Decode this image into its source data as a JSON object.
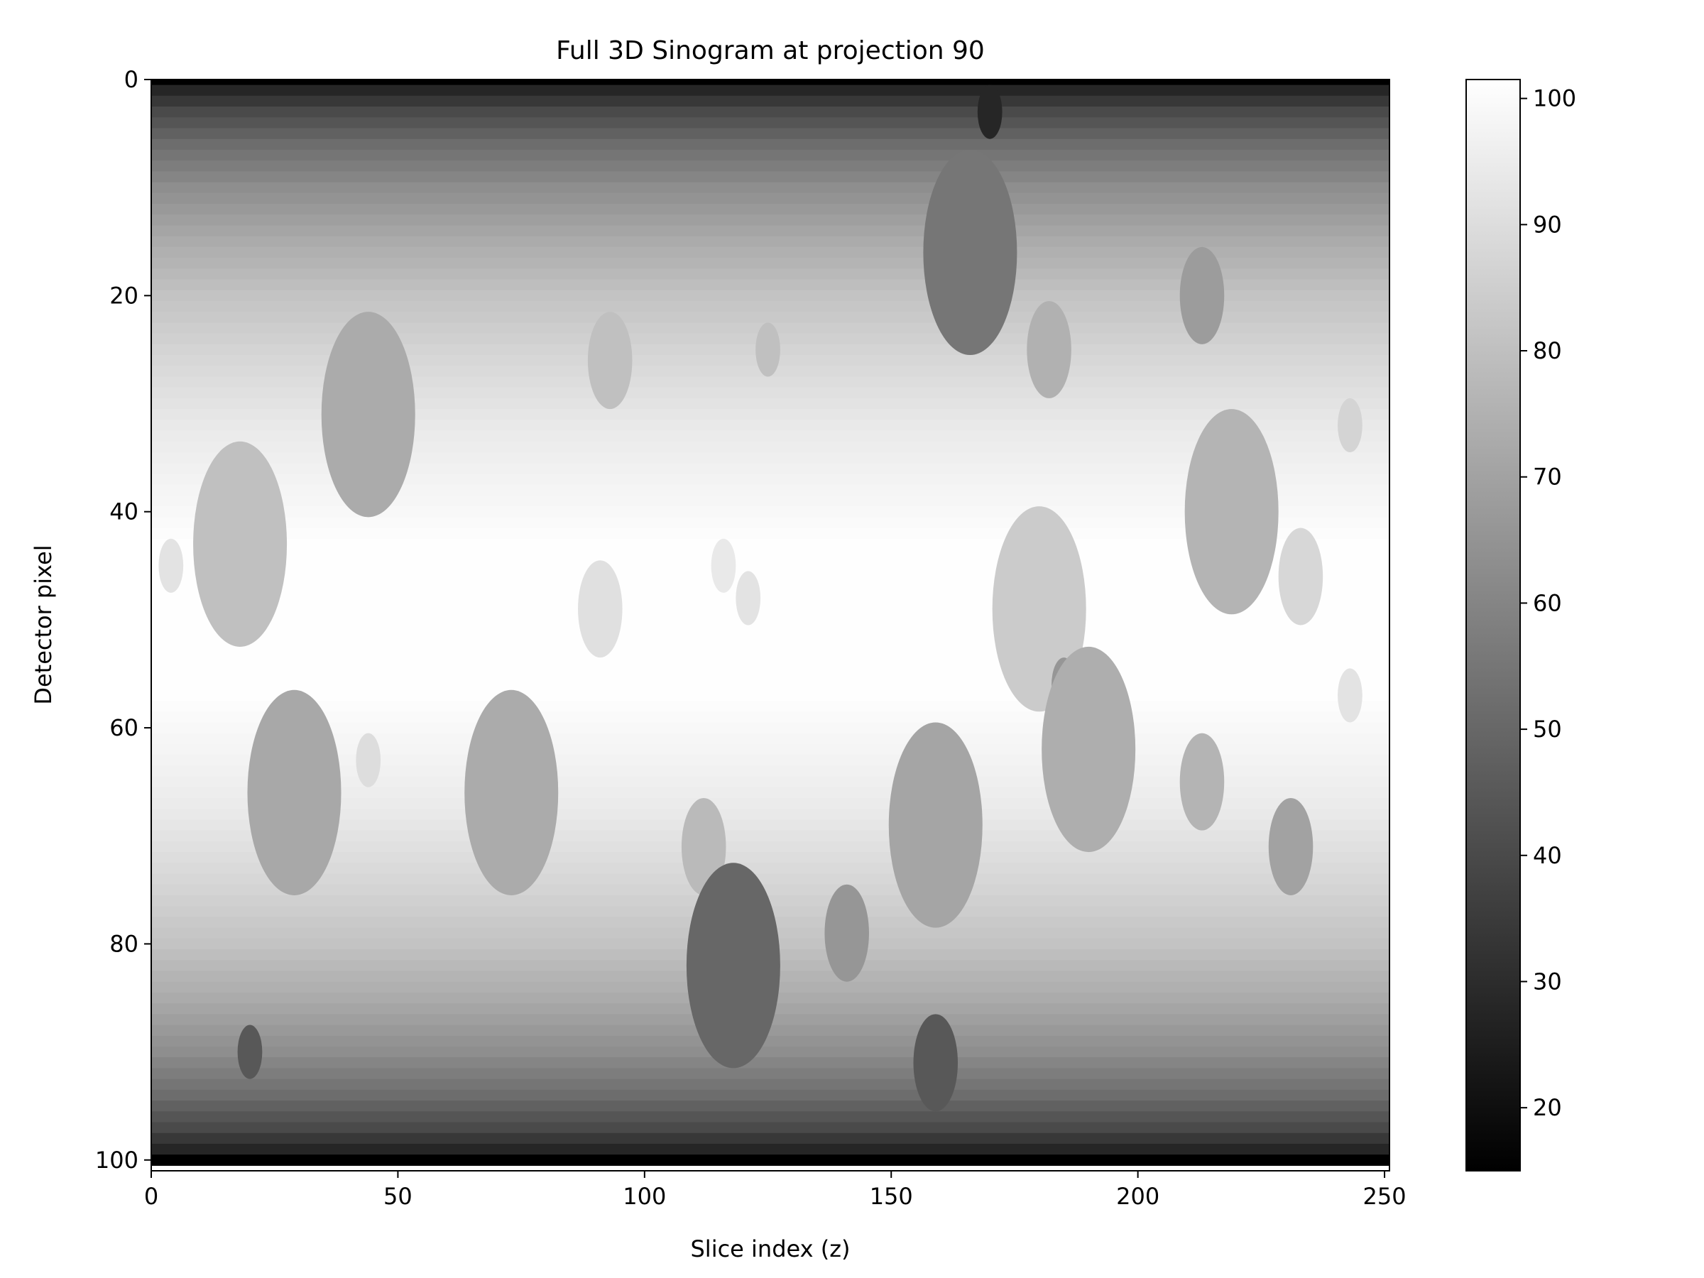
{
  "chart_data": {
    "type": "heatmap",
    "title": "Full 3D Sinogram at projection 90",
    "xlabel": "Slice index (z)",
    "ylabel": "Detector pixel",
    "xlim": [
      0,
      251
    ],
    "ylim": [
      101,
      0
    ],
    "x_ticks": [
      0,
      50,
      100,
      150,
      200,
      250
    ],
    "y_ticks": [
      0,
      20,
      40,
      60,
      80,
      100
    ],
    "colormap": "gray",
    "colorbar": {
      "range": [
        15,
        101.5
      ],
      "ticks": [
        20,
        30,
        40,
        50,
        60,
        70,
        80,
        90,
        100
      ]
    },
    "background_profile": [
      {
        "detector_pixel": 0,
        "value": 15
      },
      {
        "detector_pixel": 1,
        "value": 28
      },
      {
        "detector_pixel": 3,
        "value": 40
      },
      {
        "detector_pixel": 6,
        "value": 52
      },
      {
        "detector_pixel": 10,
        "value": 63
      },
      {
        "detector_pixel": 15,
        "value": 73
      },
      {
        "detector_pixel": 20,
        "value": 81
      },
      {
        "detector_pixel": 26,
        "value": 88
      },
      {
        "detector_pixel": 32,
        "value": 94
      },
      {
        "detector_pixel": 38,
        "value": 98
      },
      {
        "detector_pixel": 43,
        "value": 101
      },
      {
        "detector_pixel": 57,
        "value": 101
      },
      {
        "detector_pixel": 62,
        "value": 98
      },
      {
        "detector_pixel": 68,
        "value": 94
      },
      {
        "detector_pixel": 74,
        "value": 88
      },
      {
        "detector_pixel": 80,
        "value": 81
      },
      {
        "detector_pixel": 85,
        "value": 73
      },
      {
        "detector_pixel": 90,
        "value": 63
      },
      {
        "detector_pixel": 94,
        "value": 52
      },
      {
        "detector_pixel": 97,
        "value": 40
      },
      {
        "detector_pixel": 99,
        "value": 28
      },
      {
        "detector_pixel": 100,
        "value": 15
      }
    ],
    "ellipses": [
      {
        "z": 170,
        "pixel": 3,
        "rz": 2.5,
        "rp": 2.5,
        "value": 28
      },
      {
        "z": 166,
        "pixel": 16,
        "rz": 9.5,
        "rp": 9.5,
        "value": 55
      },
      {
        "z": 213,
        "pixel": 20,
        "rz": 4.5,
        "rp": 4.5,
        "value": 68
      },
      {
        "z": 182,
        "pixel": 25,
        "rz": 4.5,
        "rp": 4.5,
        "value": 75
      },
      {
        "z": 44,
        "pixel": 31,
        "rz": 9.5,
        "rp": 9.5,
        "value": 73
      },
      {
        "z": 93,
        "pixel": 26,
        "rz": 4.5,
        "rp": 4.5,
        "value": 80
      },
      {
        "z": 125,
        "pixel": 25,
        "rz": 2.5,
        "rp": 2.5,
        "value": 80
      },
      {
        "z": 243,
        "pixel": 32,
        "rz": 2.5,
        "rp": 2.5,
        "value": 87
      },
      {
        "z": 219,
        "pixel": 40,
        "rz": 9.5,
        "rp": 9.5,
        "value": 76
      },
      {
        "z": 18,
        "pixel": 43,
        "rz": 9.5,
        "rp": 9.5,
        "value": 80
      },
      {
        "z": 4,
        "pixel": 45,
        "rz": 2.5,
        "rp": 2.5,
        "value": 92
      },
      {
        "z": 233,
        "pixel": 46,
        "rz": 4.5,
        "rp": 4.5,
        "value": 88
      },
      {
        "z": 116,
        "pixel": 45,
        "rz": 2.5,
        "rp": 2.5,
        "value": 94
      },
      {
        "z": 121,
        "pixel": 48,
        "rz": 2.5,
        "rp": 2.5,
        "value": 92
      },
      {
        "z": 91,
        "pixel": 49,
        "rz": 4.5,
        "rp": 4.5,
        "value": 91
      },
      {
        "z": 180,
        "pixel": 49,
        "rz": 9.5,
        "rp": 9.5,
        "value": 84
      },
      {
        "z": 243,
        "pixel": 57,
        "rz": 2.5,
        "rp": 2.5,
        "value": 92
      },
      {
        "z": 185,
        "pixel": 56,
        "rz": 2.5,
        "rp": 2.5,
        "value": 66
      },
      {
        "z": 190,
        "pixel": 62,
        "rz": 9.5,
        "rp": 9.5,
        "value": 74
      },
      {
        "z": 44,
        "pixel": 63,
        "rz": 2.5,
        "rp": 2.5,
        "value": 90
      },
      {
        "z": 29,
        "pixel": 66,
        "rz": 9.5,
        "rp": 9.5,
        "value": 72
      },
      {
        "z": 73,
        "pixel": 66,
        "rz": 9.5,
        "rp": 9.5,
        "value": 73
      },
      {
        "z": 159,
        "pixel": 69,
        "rz": 9.5,
        "rp": 9.5,
        "value": 71
      },
      {
        "z": 213,
        "pixel": 65,
        "rz": 4.5,
        "rp": 4.5,
        "value": 76
      },
      {
        "z": 112,
        "pixel": 71,
        "rz": 4.5,
        "rp": 4.5,
        "value": 78
      },
      {
        "z": 231,
        "pixel": 71,
        "rz": 4.5,
        "rp": 4.5,
        "value": 70
      },
      {
        "z": 118,
        "pixel": 82,
        "rz": 9.5,
        "rp": 9.5,
        "value": 50
      },
      {
        "z": 141,
        "pixel": 79,
        "rz": 4.5,
        "rp": 4.5,
        "value": 66
      },
      {
        "z": 159,
        "pixel": 91,
        "rz": 4.5,
        "rp": 4.5,
        "value": 45
      },
      {
        "z": 20,
        "pixel": 90,
        "rz": 2.5,
        "rp": 2.5,
        "value": 45
      }
    ]
  }
}
